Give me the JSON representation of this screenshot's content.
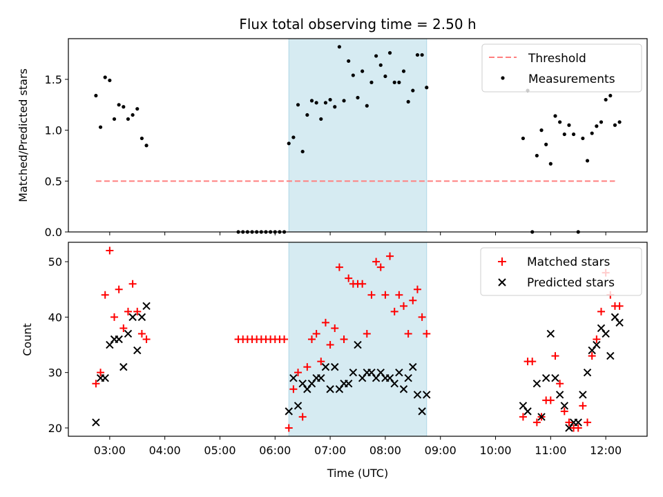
{
  "chart_data": {
    "title": "Flux total observing time = 2.50 h",
    "x_axis": {
      "label": "Time (UTC)",
      "unit": "hours UTC",
      "range": [
        "02:15",
        "12:45"
      ],
      "ticks": [
        "03:00",
        "04:00",
        "05:00",
        "06:00",
        "07:00",
        "08:00",
        "09:00",
        "10:00",
        "11:00",
        "12:00"
      ]
    },
    "highlight_span": {
      "from": "06:15",
      "to": "08:45",
      "color": "#add8e6"
    },
    "panels": [
      {
        "id": "ratio",
        "type": "scatter",
        "ylabel": "Matched/Predicted stars",
        "ylim": [
          0,
          1.9
        ],
        "yticks": [
          "0.0",
          "0.5",
          "1.0",
          "1.5"
        ],
        "legend_position": "top-right",
        "threshold": {
          "name": "Threshold",
          "value": 0.5,
          "x_from": "02:45",
          "x_to": "12:10",
          "color": "#ff7f7f",
          "style": "dashed"
        },
        "series": [
          {
            "name": "Measurements",
            "color": "#000000",
            "marker": "dot",
            "points": [
              [
                "02:45",
                1.34
              ],
              [
                "02:50",
                1.03
              ],
              [
                "02:55",
                1.52
              ],
              [
                "03:00",
                1.49
              ],
              [
                "03:05",
                1.11
              ],
              [
                "03:10",
                1.25
              ],
              [
                "03:15",
                1.23
              ],
              [
                "03:20",
                1.11
              ],
              [
                "03:25",
                1.15
              ],
              [
                "03:30",
                1.21
              ],
              [
                "03:35",
                0.92
              ],
              [
                "03:40",
                0.85
              ],
              [
                "05:20",
                0.0
              ],
              [
                "05:25",
                0.0
              ],
              [
                "05:30",
                0.0
              ],
              [
                "05:35",
                0.0
              ],
              [
                "05:40",
                0.0
              ],
              [
                "05:45",
                0.0
              ],
              [
                "05:50",
                0.0
              ],
              [
                "05:55",
                0.0
              ],
              [
                "06:00",
                0.0
              ],
              [
                "06:05",
                0.0
              ],
              [
                "06:10",
                0.0
              ],
              [
                "06:15",
                0.87
              ],
              [
                "06:20",
                0.93
              ],
              [
                "06:25",
                1.25
              ],
              [
                "06:30",
                0.79
              ],
              [
                "06:35",
                1.15
              ],
              [
                "06:40",
                1.29
              ],
              [
                "06:45",
                1.27
              ],
              [
                "06:50",
                1.11
              ],
              [
                "06:55",
                1.27
              ],
              [
                "07:00",
                1.3
              ],
              [
                "07:05",
                1.23
              ],
              [
                "07:10",
                1.82
              ],
              [
                "07:15",
                1.29
              ],
              [
                "07:20",
                1.68
              ],
              [
                "07:25",
                1.54
              ],
              [
                "07:30",
                1.32
              ],
              [
                "07:35",
                1.58
              ],
              [
                "07:40",
                1.24
              ],
              [
                "07:45",
                1.47
              ],
              [
                "07:50",
                1.73
              ],
              [
                "07:55",
                1.64
              ],
              [
                "08:00",
                1.53
              ],
              [
                "08:05",
                1.76
              ],
              [
                "08:10",
                1.47
              ],
              [
                "08:15",
                1.47
              ],
              [
                "08:20",
                1.58
              ],
              [
                "08:25",
                1.28
              ],
              [
                "08:30",
                1.39
              ],
              [
                "08:35",
                1.74
              ],
              [
                "08:40",
                1.74
              ],
              [
                "08:45",
                1.42
              ],
              [
                "10:30",
                0.92
              ],
              [
                "10:35",
                1.39
              ],
              [
                "10:40",
                0.0
              ],
              [
                "10:45",
                0.75
              ],
              [
                "10:50",
                1.0
              ],
              [
                "10:55",
                0.86
              ],
              [
                "11:00",
                0.67
              ],
              [
                "11:05",
                1.14
              ],
              [
                "11:10",
                1.08
              ],
              [
                "11:15",
                0.96
              ],
              [
                "11:20",
                1.05
              ],
              [
                "11:25",
                0.96
              ],
              [
                "11:30",
                0.0
              ],
              [
                "11:35",
                0.92
              ],
              [
                "11:40",
                0.7
              ],
              [
                "11:45",
                0.97
              ],
              [
                "11:50",
                1.04
              ],
              [
                "11:55",
                1.08
              ],
              [
                "12:00",
                1.3
              ],
              [
                "12:05",
                1.34
              ],
              [
                "12:10",
                1.05
              ],
              [
                "12:15",
                1.08
              ]
            ]
          }
        ]
      },
      {
        "id": "counts",
        "type": "scatter",
        "ylabel": "Count",
        "ylim": [
          18.5,
          53.5
        ],
        "yticks": [
          "20",
          "30",
          "40",
          "50"
        ],
        "legend_position": "top-right",
        "series": [
          {
            "name": "Matched stars",
            "color": "#ff0000",
            "marker": "plus",
            "points": [
              [
                "02:45",
                28
              ],
              [
                "02:50",
                30
              ],
              [
                "02:55",
                44
              ],
              [
                "03:00",
                52
              ],
              [
                "03:05",
                40
              ],
              [
                "03:10",
                45
              ],
              [
                "03:15",
                38
              ],
              [
                "03:20",
                41
              ],
              [
                "03:25",
                46
              ],
              [
                "03:30",
                41
              ],
              [
                "03:35",
                37
              ],
              [
                "03:40",
                36
              ],
              [
                "05:20",
                36
              ],
              [
                "05:25",
                36
              ],
              [
                "05:30",
                36
              ],
              [
                "05:35",
                36
              ],
              [
                "05:40",
                36
              ],
              [
                "05:45",
                36
              ],
              [
                "05:50",
                36
              ],
              [
                "05:55",
                36
              ],
              [
                "06:00",
                36
              ],
              [
                "06:05",
                36
              ],
              [
                "06:10",
                36
              ],
              [
                "06:15",
                20
              ],
              [
                "06:20",
                27
              ],
              [
                "06:25",
                30
              ],
              [
                "06:30",
                22
              ],
              [
                "06:35",
                31
              ],
              [
                "06:40",
                36
              ],
              [
                "06:45",
                37
              ],
              [
                "06:50",
                32
              ],
              [
                "06:55",
                39
              ],
              [
                "07:00",
                35
              ],
              [
                "07:05",
                38
              ],
              [
                "07:10",
                49
              ],
              [
                "07:15",
                36
              ],
              [
                "07:20",
                47
              ],
              [
                "07:25",
                46
              ],
              [
                "07:30",
                46
              ],
              [
                "07:35",
                46
              ],
              [
                "07:40",
                37
              ],
              [
                "07:45",
                44
              ],
              [
                "07:50",
                50
              ],
              [
                "07:55",
                49
              ],
              [
                "08:00",
                44
              ],
              [
                "08:05",
                51
              ],
              [
                "08:10",
                41
              ],
              [
                "08:15",
                44
              ],
              [
                "08:20",
                42
              ],
              [
                "08:25",
                37
              ],
              [
                "08:30",
                43
              ],
              [
                "08:35",
                45
              ],
              [
                "08:40",
                40
              ],
              [
                "08:45",
                37
              ],
              [
                "10:30",
                22
              ],
              [
                "10:35",
                32
              ],
              [
                "10:40",
                32
              ],
              [
                "10:45",
                21
              ],
              [
                "10:50",
                22
              ],
              [
                "10:55",
                25
              ],
              [
                "11:00",
                25
              ],
              [
                "11:05",
                33
              ],
              [
                "11:10",
                28
              ],
              [
                "11:15",
                23
              ],
              [
                "11:20",
                21
              ],
              [
                "11:25",
                20
              ],
              [
                "11:30",
                20
              ],
              [
                "11:35",
                24
              ],
              [
                "11:40",
                21
              ],
              [
                "11:45",
                33
              ],
              [
                "11:50",
                36
              ],
              [
                "11:55",
                41
              ],
              [
                "12:00",
                48
              ],
              [
                "12:05",
                44
              ],
              [
                "12:10",
                42
              ],
              [
                "12:15",
                42
              ]
            ]
          },
          {
            "name": "Predicted stars",
            "color": "#000000",
            "marker": "x",
            "points": [
              [
                "02:45",
                21
              ],
              [
                "02:50",
                29
              ],
              [
                "02:55",
                29
              ],
              [
                "03:00",
                35
              ],
              [
                "03:05",
                36
              ],
              [
                "03:10",
                36
              ],
              [
                "03:15",
                31
              ],
              [
                "03:20",
                37
              ],
              [
                "03:25",
                40
              ],
              [
                "03:30",
                34
              ],
              [
                "03:35",
                40
              ],
              [
                "03:40",
                42
              ],
              [
                "06:15",
                23
              ],
              [
                "06:20",
                29
              ],
              [
                "06:25",
                24
              ],
              [
                "06:30",
                28
              ],
              [
                "06:35",
                27
              ],
              [
                "06:40",
                28
              ],
              [
                "06:45",
                29
              ],
              [
                "06:50",
                29
              ],
              [
                "06:55",
                31
              ],
              [
                "07:00",
                27
              ],
              [
                "07:05",
                31
              ],
              [
                "07:10",
                27
              ],
              [
                "07:15",
                28
              ],
              [
                "07:20",
                28
              ],
              [
                "07:25",
                30
              ],
              [
                "07:30",
                35
              ],
              [
                "07:35",
                29
              ],
              [
                "07:40",
                30
              ],
              [
                "07:45",
                30
              ],
              [
                "07:50",
                29
              ],
              [
                "07:55",
                30
              ],
              [
                "08:00",
                29
              ],
              [
                "08:05",
                29
              ],
              [
                "08:10",
                28
              ],
              [
                "08:15",
                30
              ],
              [
                "08:20",
                27
              ],
              [
                "08:25",
                29
              ],
              [
                "08:30",
                31
              ],
              [
                "08:35",
                26
              ],
              [
                "08:40",
                23
              ],
              [
                "08:45",
                26
              ],
              [
                "10:30",
                24
              ],
              [
                "10:35",
                23
              ],
              [
                "10:45",
                28
              ],
              [
                "10:50",
                22
              ],
              [
                "10:55",
                29
              ],
              [
                "11:00",
                37
              ],
              [
                "11:05",
                29
              ],
              [
                "11:10",
                26
              ],
              [
                "11:15",
                24
              ],
              [
                "11:20",
                20
              ],
              [
                "11:25",
                21
              ],
              [
                "11:30",
                21
              ],
              [
                "11:35",
                26
              ],
              [
                "11:40",
                30
              ],
              [
                "11:45",
                34
              ],
              [
                "11:50",
                35
              ],
              [
                "11:55",
                38
              ],
              [
                "12:00",
                37
              ],
              [
                "12:05",
                33
              ],
              [
                "12:10",
                40
              ],
              [
                "12:15",
                39
              ]
            ]
          }
        ]
      }
    ]
  }
}
